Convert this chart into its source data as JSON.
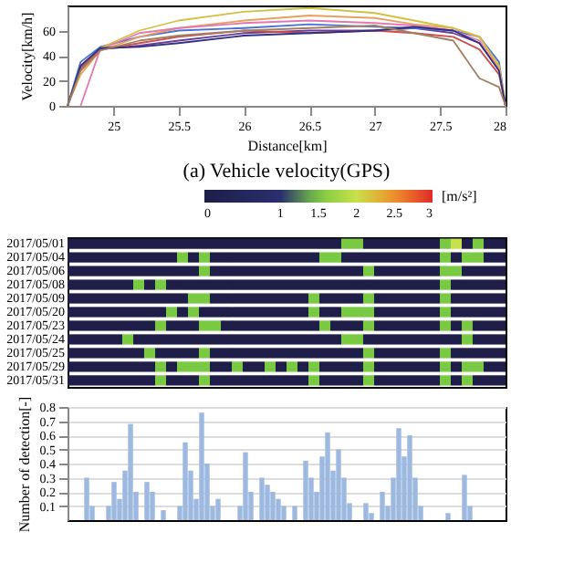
{
  "chart_data": [
    {
      "type": "line",
      "title": "(a) Vehicle velocity(GPS)",
      "xlabel": "Distance[km]",
      "ylabel": "Velocity[km/h]",
      "x": [
        24.65,
        24.75,
        24.9,
        25.2,
        25.5,
        26,
        26.5,
        27,
        27.3,
        27.6,
        27.8,
        27.95,
        28
      ],
      "xlim": [
        24.65,
        28
      ],
      "xticks": [
        25,
        25.5,
        26,
        26.5,
        27,
        27.5,
        28
      ],
      "ylim": [
        0,
        80
      ],
      "yticks": [
        0,
        20,
        40,
        60
      ],
      "grid": false,
      "legend": false,
      "marker": "none",
      "line_style": "solid",
      "series": [
        {
          "color": "#6a3d9a",
          "values": [
            0,
            30,
            45,
            48,
            52,
            58,
            60,
            60,
            62,
            58,
            50,
            30,
            0
          ]
        },
        {
          "color": "#4a6fd0",
          "values": [
            0,
            35,
            47,
            55,
            60,
            62,
            65,
            63,
            62,
            60,
            55,
            35,
            0
          ]
        },
        {
          "color": "#e8a060",
          "values": [
            0,
            25,
            44,
            55,
            62,
            68,
            72,
            70,
            65,
            62,
            55,
            30,
            0
          ]
        },
        {
          "color": "#e07ab0",
          "values": [
            null,
            0,
            45,
            58,
            62,
            66,
            68,
            66,
            64,
            60,
            52,
            28,
            0
          ]
        },
        {
          "color": "#d4c040",
          "values": [
            0,
            28,
            46,
            60,
            68,
            75,
            78,
            74,
            68,
            62,
            55,
            32,
            0
          ]
        },
        {
          "color": "#c85050",
          "values": [
            0,
            30,
            45,
            50,
            55,
            60,
            58,
            60,
            58,
            55,
            45,
            25,
            0
          ]
        },
        {
          "color": "#303080",
          "values": [
            0,
            32,
            46,
            47,
            50,
            56,
            58,
            60,
            63,
            60,
            50,
            28,
            0
          ]
        },
        {
          "color": "#a08060",
          "values": [
            0,
            28,
            44,
            52,
            56,
            60,
            62,
            64,
            58,
            52,
            22,
            15,
            0
          ]
        }
      ]
    },
    {
      "type": "heatmap",
      "clabel": "[m/s²]",
      "clim": [
        0,
        3
      ],
      "cticks": [
        0,
        1,
        1.5,
        2,
        2.5,
        3
      ],
      "colors": [
        "#1e1e48",
        "#2a2f6e",
        "#7ac943",
        "#c8e04a",
        "#f0902a",
        "#e02a2a"
      ],
      "tick_labels": "y",
      "categories": [
        null,
        null,
        null,
        null,
        null,
        null,
        null,
        null,
        null,
        null,
        null,
        null,
        null,
        null,
        null,
        null,
        null,
        null,
        null,
        null,
        null,
        null,
        null,
        null,
        null,
        null,
        null,
        null,
        null,
        null,
        null,
        null,
        null,
        null,
        null,
        null,
        null,
        null,
        null,
        null
      ],
      "y_categories": [
        "2017/05/01",
        "2017/05/04",
        "2017/05/06",
        "2017/05/08",
        "2017/05/09",
        "2017/05/20",
        "2017/05/23",
        "2017/05/24",
        "2017/05/25",
        "2017/05/29",
        "2017/05/31"
      ],
      "cells": [
        [
          0,
          0,
          0,
          0,
          0,
          0,
          0,
          0,
          0,
          0,
          0,
          0,
          0,
          0,
          0,
          0,
          0,
          0,
          0,
          0,
          0,
          0,
          0,
          0,
          0,
          1.5,
          1.5,
          0,
          0,
          0,
          0,
          0,
          0,
          0,
          1.5,
          2,
          0,
          1.5,
          0,
          0
        ],
        [
          0,
          0,
          0,
          0,
          0,
          0,
          0,
          0,
          0,
          0,
          1.5,
          0,
          1.5,
          0,
          0,
          0,
          0,
          0,
          0,
          0,
          0,
          0,
          0,
          1.5,
          1.5,
          0,
          0,
          0,
          0,
          0,
          0,
          0,
          0,
          0,
          1.5,
          0,
          1.5,
          1.5,
          0,
          0
        ],
        [
          0,
          0,
          0,
          0,
          0,
          0,
          0,
          0,
          0,
          0,
          0,
          0,
          1.5,
          0,
          0,
          0,
          0,
          0,
          0,
          0,
          0,
          0,
          0,
          0,
          0,
          0,
          0,
          1.5,
          0,
          0,
          0,
          0,
          0,
          0,
          1.5,
          1.5,
          0,
          0,
          0,
          0
        ],
        [
          0,
          0,
          0,
          0,
          0,
          0,
          1.5,
          0,
          1.5,
          0,
          0,
          0,
          0,
          0,
          0,
          0,
          0,
          0,
          0,
          0,
          0,
          0,
          0,
          0,
          0,
          0,
          0,
          0,
          0,
          0,
          0,
          0,
          0,
          0,
          1.5,
          0,
          0,
          0,
          0,
          0
        ],
        [
          0,
          0,
          0,
          0,
          0,
          0,
          0,
          0,
          0,
          0,
          0,
          1.5,
          1.5,
          0,
          0,
          0,
          0,
          0,
          0,
          0,
          0,
          0,
          1.5,
          0,
          0,
          0,
          0,
          1.5,
          0,
          0,
          0,
          0,
          0,
          0,
          1.5,
          0,
          0,
          0,
          0,
          0
        ],
        [
          0,
          0,
          0,
          0,
          0,
          0,
          0,
          0,
          0,
          1.5,
          0,
          1.5,
          0,
          0,
          0,
          0,
          0,
          0,
          0,
          0,
          0,
          0,
          1.5,
          0,
          0,
          1.5,
          1.5,
          1.5,
          0,
          0,
          0,
          0,
          0,
          0,
          1.5,
          0,
          0,
          0,
          0,
          0
        ],
        [
          0,
          0,
          0,
          0,
          0,
          0,
          0,
          0,
          1.5,
          0,
          0,
          0,
          1.5,
          1.5,
          0,
          0,
          0,
          0,
          0,
          0,
          0,
          0,
          0,
          1.5,
          0,
          0,
          0,
          1.5,
          0,
          0,
          0,
          0,
          0,
          0,
          1.5,
          0,
          1.5,
          0,
          0,
          0
        ],
        [
          0,
          0,
          0,
          0,
          0,
          1.5,
          0,
          0,
          0,
          0,
          0,
          0,
          0,
          0,
          0,
          0,
          0,
          0,
          0,
          0,
          0,
          0,
          0,
          0,
          0,
          1.5,
          1.5,
          0,
          0,
          0,
          0,
          0,
          0,
          0,
          0,
          0,
          1.5,
          0,
          0,
          0
        ],
        [
          0,
          0,
          0,
          0,
          0,
          0,
          0,
          1.5,
          0,
          0,
          0,
          0,
          1.5,
          0,
          0,
          0,
          0,
          0,
          0,
          0,
          0,
          0,
          0,
          0,
          0,
          0,
          0,
          1.5,
          0,
          0,
          0,
          0,
          0,
          0,
          1.5,
          0,
          0,
          0,
          0,
          0
        ],
        [
          0,
          0,
          0,
          0,
          0,
          0,
          0,
          0,
          1.5,
          0,
          1.5,
          1.5,
          1.5,
          0,
          0,
          1.5,
          0,
          0,
          1.5,
          0,
          1.5,
          0,
          1.5,
          0,
          0,
          0,
          0,
          1.5,
          0,
          0,
          0,
          0,
          0,
          0,
          1.5,
          0,
          1.5,
          1.5,
          0,
          0
        ],
        [
          0,
          0,
          0,
          0,
          0,
          0,
          0,
          0,
          1.5,
          0,
          0,
          0,
          1.5,
          0,
          0,
          0,
          0,
          0,
          0,
          0,
          0,
          0,
          1.5,
          0,
          0,
          0,
          0,
          1.5,
          0,
          0,
          0,
          0,
          0,
          0,
          1.5,
          0,
          1.5,
          0,
          0,
          0
        ]
      ]
    },
    {
      "type": "bar",
      "ylabel": "Number of detection[-]",
      "color": "#9db9e0",
      "ylim": [
        0,
        0.8
      ],
      "yticks": [
        0.1,
        0.2,
        0.3,
        0.4,
        0.5,
        0.6,
        0.7,
        0.8
      ],
      "grid": "y",
      "tick_labels": "y",
      "categories": [
        null,
        null,
        null,
        null,
        null,
        null,
        null,
        null,
        null,
        null,
        null,
        null,
        null,
        null,
        null,
        null,
        null,
        null,
        null,
        null,
        null,
        null,
        null,
        null,
        null,
        null,
        null,
        null,
        null,
        null,
        null,
        null,
        null,
        null,
        null,
        null,
        null,
        null,
        null,
        null,
        null,
        null,
        null,
        null,
        null,
        null,
        null,
        null,
        null,
        null,
        null,
        null,
        null,
        null,
        null,
        null,
        null,
        null,
        null,
        null,
        null,
        null,
        null,
        null,
        null,
        null,
        null,
        null,
        null,
        null,
        null,
        null,
        null,
        null,
        null,
        null,
        null,
        null,
        null,
        null
      ],
      "values": [
        0,
        0,
        0,
        0.3,
        0.1,
        0,
        0,
        0.1,
        0.27,
        0.15,
        0.35,
        0.68,
        0.2,
        0,
        0.27,
        0.2,
        0,
        0.07,
        0,
        0,
        0.1,
        0.55,
        0.35,
        0.15,
        0.76,
        0.4,
        0.1,
        0.15,
        0,
        0,
        0,
        0.1,
        0.48,
        0.2,
        0,
        0.3,
        0.25,
        0.2,
        0.15,
        0.1,
        0,
        0.1,
        0,
        0.42,
        0.3,
        0.2,
        0.45,
        0.62,
        0.35,
        0.5,
        0.3,
        0.12,
        0,
        0,
        0.12,
        0.05,
        0,
        0.2,
        0.1,
        0.3,
        0.65,
        0.45,
        0.6,
        0.3,
        0.1,
        0,
        0,
        0,
        0,
        0.05,
        0,
        0,
        0.32,
        0.1,
        0,
        0,
        0,
        0,
        0,
        0
      ]
    }
  ]
}
